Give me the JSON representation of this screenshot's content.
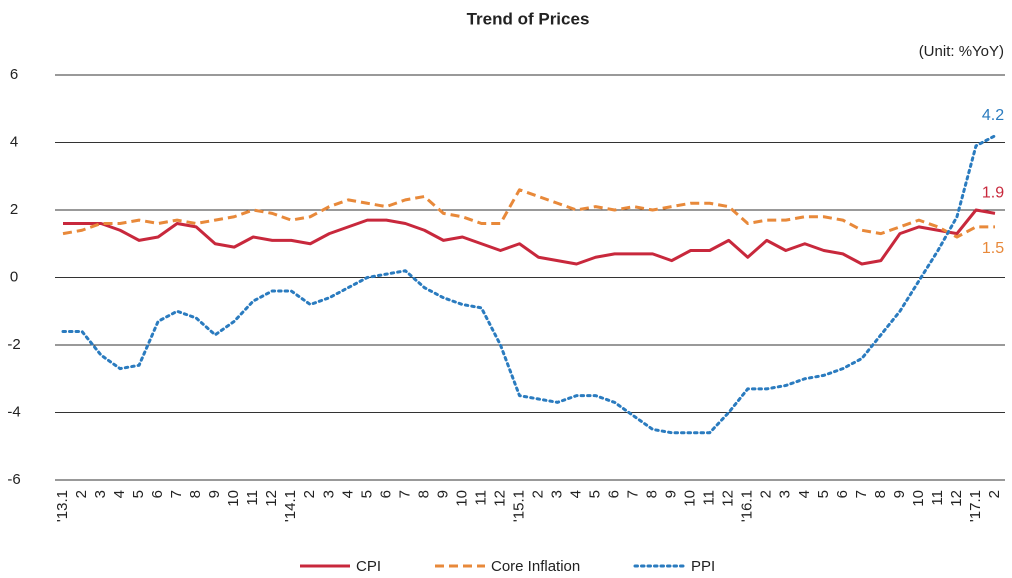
{
  "chart_data": {
    "type": "line",
    "title": "Trend of Prices",
    "unit": "(Unit: %YoY)",
    "categories": [
      "'13.1",
      "2",
      "3",
      "4",
      "5",
      "6",
      "7",
      "8",
      "9",
      "10",
      "11",
      "12",
      "'14.1",
      "2",
      "3",
      "4",
      "5",
      "6",
      "7",
      "8",
      "9",
      "10",
      "11",
      "12",
      "'15.1",
      "2",
      "3",
      "4",
      "5",
      "6",
      "7",
      "8",
      "9",
      "10",
      "11",
      "12",
      "'16.1",
      "2",
      "3",
      "4",
      "5",
      "6",
      "7",
      "8",
      "9",
      "10",
      "11",
      "12",
      "'17.1",
      "2"
    ],
    "series": [
      {
        "name": "CPI",
        "color": "#c8283c",
        "style": "solid",
        "values": [
          1.6,
          1.6,
          1.6,
          1.4,
          1.1,
          1.2,
          1.6,
          1.5,
          1.0,
          0.9,
          1.2,
          1.1,
          1.1,
          1.0,
          1.3,
          1.5,
          1.7,
          1.7,
          1.6,
          1.4,
          1.1,
          1.2,
          1.0,
          0.8,
          1.0,
          0.6,
          0.5,
          0.4,
          0.6,
          0.7,
          0.7,
          0.7,
          0.5,
          0.8,
          0.8,
          1.1,
          0.6,
          1.1,
          0.8,
          1.0,
          0.8,
          0.7,
          0.4,
          0.5,
          1.3,
          1.5,
          1.4,
          1.3,
          2.0,
          1.9
        ]
      },
      {
        "name": "Core Inflation",
        "color": "#e8893a",
        "style": "dashed",
        "values": [
          1.3,
          1.4,
          1.6,
          1.6,
          1.7,
          1.6,
          1.7,
          1.6,
          1.7,
          1.8,
          2.0,
          1.9,
          1.7,
          1.8,
          2.1,
          2.3,
          2.2,
          2.1,
          2.3,
          2.4,
          1.9,
          1.8,
          1.6,
          1.6,
          2.6,
          2.4,
          2.2,
          2.0,
          2.1,
          2.0,
          2.1,
          2.0,
          2.1,
          2.2,
          2.2,
          2.1,
          1.6,
          1.7,
          1.7,
          1.8,
          1.8,
          1.7,
          1.4,
          1.3,
          1.5,
          1.7,
          1.5,
          1.2,
          1.5,
          1.5
        ]
      },
      {
        "name": "PPI",
        "color": "#2a7bbf",
        "style": "dotted",
        "values": [
          -1.6,
          -1.6,
          -2.3,
          -2.7,
          -2.6,
          -1.3,
          -1.0,
          -1.2,
          -1.7,
          -1.3,
          -0.7,
          -0.4,
          -0.4,
          -0.8,
          -0.6,
          -0.3,
          0.0,
          0.1,
          0.2,
          -0.3,
          -0.6,
          -0.8,
          -0.9,
          -2.0,
          -3.5,
          -3.6,
          -3.7,
          -3.5,
          -3.5,
          -3.7,
          -4.1,
          -4.5,
          -4.6,
          -4.6,
          -4.6,
          -4.0,
          -3.3,
          -3.3,
          -3.2,
          -3.0,
          -2.9,
          -2.7,
          -2.4,
          -1.7,
          -1.0,
          -0.1,
          0.8,
          1.8,
          3.9,
          4.2
        ]
      }
    ],
    "ylim": [
      -6,
      6
    ],
    "yticks": [
      -6,
      -4,
      -2,
      0,
      2,
      4,
      6
    ],
    "grid": true,
    "legend": "bottom"
  }
}
